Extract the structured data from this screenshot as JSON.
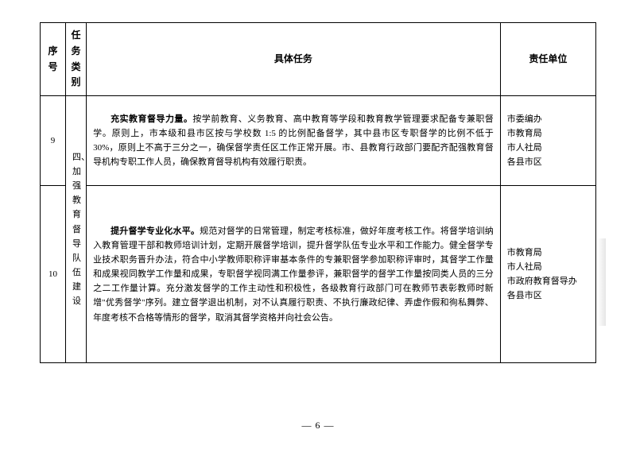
{
  "header": {
    "col_seq": "序号",
    "col_cat_line1": "任务",
    "col_cat_line2": "类别",
    "col_task": "具体任务",
    "col_dept": "责任单位"
  },
  "category": {
    "label": "四、加强教育督导队伍建设"
  },
  "rows": [
    {
      "seq": "9",
      "title": "充实教育督导力量。",
      "body": "按学前教育、义务教育、高中教育等学段和教育教学管理要求配备专兼职督学。原则上，市本级和县市区按与学校数 1:5 的比例配备督学，其中县市区专职督学的比例不低于 30%，原则上不高于三分之一，确保督学责任区工作正常开展。市、县教育行政部门要配齐配强教育督导机构专职工作人员，确保教育督导机构有效履行职责。",
      "depts": [
        "市委编办",
        "市教育局",
        "市人社局",
        "各县市区"
      ]
    },
    {
      "seq": "10",
      "title": "提升督学专业化水平。",
      "body": "规范对督学的日常管理，制定考核标准，做好年度考核工作。将督学培训纳入教育管理干部和教师培训计划，定期开展督学培训，提升督学队伍专业水平和工作能力。健全督学专业技术职务晋升办法，符合中小学教师职称评审基本条件的专兼职督学参加职称评审时，其督学工作量和成果视同教学工作量和成果，专职督学视同满工作量参评，兼职督学的督学工作量按同类人员的三分之二工作量计算。充分激发督学的工作主动性和积极性，各级教育行政部门可在教师节表彰教师时新增\"优秀督学\"序列。建立督学退出机制，对不认真履行职责、不执行廉政纪律、弄虚作假和徇私舞弊、年度考核不合格等情形的督学，取消其督学资格并向社会公告。",
      "depts": [
        "市教育局",
        "市人社局",
        "市政府教育督导办",
        "各县市区"
      ]
    }
  ],
  "page_number": "— 6 —"
}
